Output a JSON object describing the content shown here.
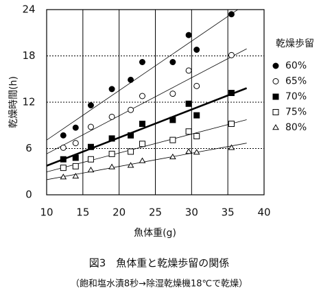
{
  "chart_data": {
    "type": "scatter",
    "caption": "図3　魚体重と乾燥歩留の関係",
    "subcaption": "（飽和塩水漬8秒→除湿乾燥機18℃で乾燥）",
    "x_label": "魚体重(g)",
    "y_label": "乾燥時間(h)",
    "legend_title": "乾燥歩留",
    "xlim": [
      10,
      40
    ],
    "xticks": [
      10,
      15,
      20,
      25,
      30,
      35,
      40
    ],
    "ylim": [
      0,
      24
    ],
    "yticks": [
      0,
      6,
      12,
      18,
      24
    ],
    "grid": true,
    "legend": "right",
    "x": [
      12.3,
      14.0,
      16.1,
      19.0,
      21.6,
      23.2,
      27.4,
      29.6,
      30.7,
      35.5
    ],
    "series": [
      {
        "name": "60%",
        "color": "#000000",
        "marker": "circle-filled",
        "values": [
          7.7,
          8.7,
          11.6,
          13.7,
          14.9,
          17.2,
          17.2,
          20.7,
          18.8,
          23.4
        ]
      },
      {
        "name": "65%",
        "color": "#000000",
        "marker": "circle-open",
        "values": [
          6.1,
          6.7,
          8.8,
          10.1,
          11.0,
          12.8,
          13.1,
          16.1,
          14.1,
          18.1
        ]
      },
      {
        "name": "70%",
        "color": "#000000",
        "marker": "square-filled",
        "values": [
          4.6,
          4.8,
          6.2,
          7.3,
          7.7,
          9.2,
          9.7,
          11.8,
          10.3,
          13.2
        ]
      },
      {
        "name": "75%",
        "color": "#000000",
        "marker": "square-open",
        "values": [
          3.5,
          3.7,
          4.6,
          5.3,
          5.6,
          6.6,
          7.1,
          8.2,
          7.6,
          9.2
        ]
      },
      {
        "name": "80%",
        "color": "#000000",
        "marker": "triangle-open",
        "values": [
          2.3,
          2.4,
          3.2,
          3.6,
          3.8,
          4.4,
          4.9,
          5.6,
          5.5,
          6.1
        ]
      }
    ]
  }
}
